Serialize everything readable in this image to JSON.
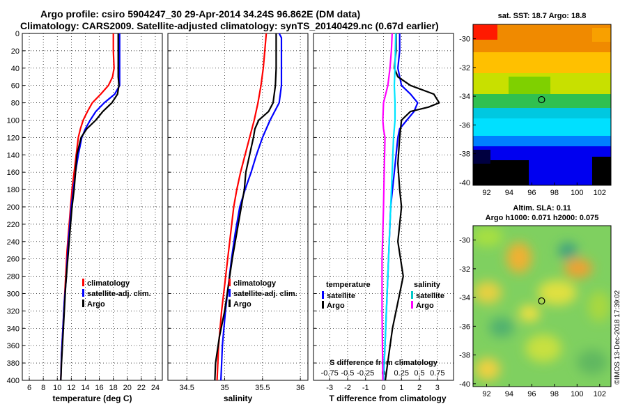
{
  "header": {
    "line1": "Argo profile: csiro 5904247_30 29-Apr-2014 34.24S 96.862E (DM data)",
    "line2": "Climatology: CARS2009. Satellite-adjusted climatology: synTS_20140429.nc (0.67d earlier)"
  },
  "colors": {
    "climatology": "#ff0000",
    "satellite": "#0000ff",
    "argo": "#000000",
    "sat_t": "#00e5ff",
    "sat_s": "#00c8c8",
    "argo_s": "#ff00ff"
  },
  "chart_data": [
    {
      "type": "line",
      "name": "temperature-profile",
      "xlabel": "temperature (deg C)",
      "ylabel": "",
      "xlim": [
        5,
        25
      ],
      "ylim": [
        400,
        0
      ],
      "xticks": [
        6,
        8,
        10,
        12,
        14,
        16,
        18,
        20,
        22,
        24
      ],
      "yticks": [
        0,
        20,
        40,
        60,
        80,
        100,
        120,
        140,
        160,
        180,
        200,
        220,
        240,
        260,
        280,
        300,
        320,
        340,
        360,
        380,
        400
      ],
      "series": [
        {
          "name": "climatology",
          "color": "#ff0000",
          "x": [
            18.0,
            18.0,
            18.1,
            17.9,
            17.3,
            16.2,
            15.0,
            14.3,
            13.7,
            13.3,
            13.0,
            12.7,
            12.4,
            12.1,
            11.9,
            11.7,
            11.4,
            11.2,
            11.0,
            10.8,
            10.6,
            10.5
          ],
          "y": [
            0,
            20,
            40,
            50,
            60,
            70,
            80,
            90,
            100,
            110,
            120,
            140,
            160,
            180,
            200,
            220,
            250,
            280,
            310,
            340,
            370,
            400
          ]
        },
        {
          "name": "satellite-adj. clim.",
          "color": "#0000ff",
          "x": [
            18.9,
            18.9,
            18.9,
            18.9,
            18.9,
            18.2,
            16.7,
            15.5,
            14.7,
            14.0,
            13.5,
            13.0,
            12.6,
            12.3,
            12.0,
            11.8,
            11.5,
            11.3,
            11.0,
            10.8,
            10.6,
            10.5
          ],
          "y": [
            0,
            20,
            40,
            50,
            60,
            70,
            80,
            90,
            100,
            110,
            120,
            140,
            160,
            180,
            200,
            220,
            250,
            280,
            310,
            340,
            370,
            400
          ]
        },
        {
          "name": "Argo",
          "color": "#000000",
          "x": [
            18.7,
            18.7,
            18.7,
            18.7,
            18.8,
            18.6,
            17.8,
            16.5,
            15.5,
            14.2,
            13.4,
            13.1,
            12.8,
            12.6,
            12.4,
            12.1,
            11.9,
            11.7,
            11.5,
            11.2,
            11.0,
            10.8,
            10.6,
            10.5
          ],
          "y": [
            0,
            20,
            40,
            50,
            60,
            70,
            80,
            90,
            100,
            110,
            120,
            130,
            140,
            160,
            180,
            200,
            220,
            240,
            260,
            290,
            320,
            350,
            380,
            400
          ]
        }
      ],
      "legend": [
        "climatology",
        "satellite-adj. clim.",
        "Argo"
      ]
    },
    {
      "type": "line",
      "name": "salinity-profile",
      "xlabel": "salinity",
      "ylabel": "",
      "xlim": [
        34.25,
        36.1
      ],
      "ylim": [
        400,
        0
      ],
      "xticks": [
        34.5,
        35,
        35.5,
        36
      ],
      "xticklabels": [
        "34.5",
        "35",
        "35.5",
        "36"
      ],
      "series": [
        {
          "name": "climatology",
          "color": "#ff0000",
          "x": [
            35.55,
            35.53,
            35.51,
            35.48,
            35.44,
            35.39,
            35.33,
            35.27,
            35.21,
            35.16,
            35.12,
            35.08,
            35.04,
            35.0,
            34.96,
            34.92,
            34.9
          ],
          "y": [
            0,
            20,
            40,
            60,
            80,
            100,
            120,
            140,
            160,
            180,
            200,
            230,
            260,
            290,
            320,
            360,
            400
          ]
        },
        {
          "name": "satellite-adj. clim.",
          "color": "#0000ff",
          "x": [
            35.72,
            35.75,
            35.75,
            35.75,
            35.72,
            35.6,
            35.5,
            35.42,
            35.35,
            35.27,
            35.2,
            35.14,
            35.09,
            35.05,
            35.01,
            34.97,
            34.95
          ],
          "y": [
            0,
            5,
            20,
            60,
            80,
            100,
            120,
            140,
            160,
            180,
            200,
            230,
            260,
            290,
            320,
            360,
            400
          ]
        },
        {
          "name": "Argo",
          "color": "#000000",
          "x": [
            35.68,
            35.68,
            35.68,
            35.67,
            35.64,
            35.58,
            35.45,
            35.4,
            35.38,
            35.33,
            35.28,
            35.26,
            35.18,
            35.1,
            35.05,
            35.0,
            34.93,
            34.88,
            34.87
          ],
          "y": [
            0,
            20,
            40,
            60,
            80,
            90,
            100,
            110,
            120,
            140,
            160,
            180,
            220,
            260,
            290,
            320,
            350,
            380,
            400
          ]
        }
      ],
      "legend": [
        "climatology",
        "satellite-adj. clim.",
        "Argo"
      ]
    },
    {
      "type": "line",
      "name": "difference-profile",
      "xlabel": "T difference from climatology",
      "subtitle": "S difference from climatology",
      "xlim": [
        -3.9,
        3.9
      ],
      "ylim": [
        400,
        0
      ],
      "xticks": [
        -3,
        -2,
        -1,
        0,
        1,
        2,
        3
      ],
      "sticks": [
        -0.75,
        -0.5,
        -0.25,
        0,
        0.25,
        0.5,
        0.75
      ],
      "stick_labels": [
        "-0.75",
        "-0.5",
        "-0.25",
        "0",
        "0.25",
        "0.5",
        "0.75"
      ],
      "s_scale": 4,
      "series": [
        {
          "name": "T satellite",
          "color": "#0000ff",
          "x": [
            0.9,
            0.9,
            0.8,
            1.0,
            1.5,
            1.9,
            1.7,
            1.3,
            0.9,
            0.8,
            0.6,
            0.4,
            0.3,
            0.2,
            0.1,
            0.0
          ],
          "y": [
            0,
            20,
            40,
            60,
            70,
            80,
            90,
            100,
            110,
            120,
            160,
            200,
            250,
            300,
            350,
            400
          ]
        },
        {
          "name": "T Argo",
          "color": "#000000",
          "x": [
            0.7,
            0.7,
            0.6,
            0.8,
            1.5,
            2.8,
            3.1,
            2.5,
            1.5,
            1.0,
            0.9,
            0.8,
            0.9,
            1.0,
            0.8,
            1.1,
            0.9,
            0.5,
            0.3,
            0.1
          ],
          "y": [
            0,
            20,
            40,
            50,
            60,
            70,
            80,
            85,
            90,
            100,
            120,
            150,
            180,
            200,
            240,
            280,
            300,
            340,
            370,
            400
          ]
        },
        {
          "name": "S satellite",
          "color": "#00e5ff",
          "x": [
            0.17,
            0.16,
            0.15,
            0.16,
            0.16,
            0.14,
            0.12,
            0.1,
            0.08,
            0.06,
            0.04,
            0.02,
            0.0
          ],
          "y": [
            0,
            40,
            60,
            80,
            100,
            120,
            160,
            200,
            240,
            280,
            320,
            360,
            400
          ]
        },
        {
          "name": "S Argo",
          "color": "#ff00ff",
          "x": [
            0.12,
            0.11,
            0.09,
            0.06,
            0.0,
            -0.01,
            0.0,
            0.02,
            0.01,
            0.0,
            -0.02,
            -0.02,
            -0.01
          ],
          "y": [
            0,
            20,
            40,
            60,
            80,
            100,
            110,
            120,
            160,
            200,
            260,
            320,
            400
          ]
        }
      ],
      "legend_titles": [
        "temperature",
        "salinity"
      ],
      "legend": [
        "satellite",
        "Argo",
        "satellite",
        "Argo"
      ]
    },
    {
      "type": "heatmap",
      "name": "sst-map",
      "title": "sat. SST: 18.7  Argo: 18.8",
      "xlim": [
        90.8,
        103
      ],
      "ylim": [
        -40.2,
        -29
      ],
      "xticks": [
        92,
        94,
        96,
        98,
        100,
        102
      ],
      "yticks": [
        -30,
        -32,
        -34,
        -36,
        -38,
        -40
      ],
      "marker": {
        "lon": 96.862,
        "lat": -34.24
      }
    },
    {
      "type": "heatmap",
      "name": "sla-map",
      "title": "Altim. SLA: 0.11",
      "subtitle": "Argo h1000: 0.071  h2000: 0.075",
      "xlim": [
        90.8,
        103
      ],
      "ylim": [
        -40.2,
        -29
      ],
      "xticks": [
        92,
        94,
        96,
        98,
        100,
        102
      ],
      "yticks": [
        -30,
        -32,
        -34,
        -36,
        -38,
        -40
      ],
      "marker": {
        "lon": 96.862,
        "lat": -34.24
      }
    }
  ],
  "credit": "©IMOS 13-Dec-2018 17:39:02"
}
